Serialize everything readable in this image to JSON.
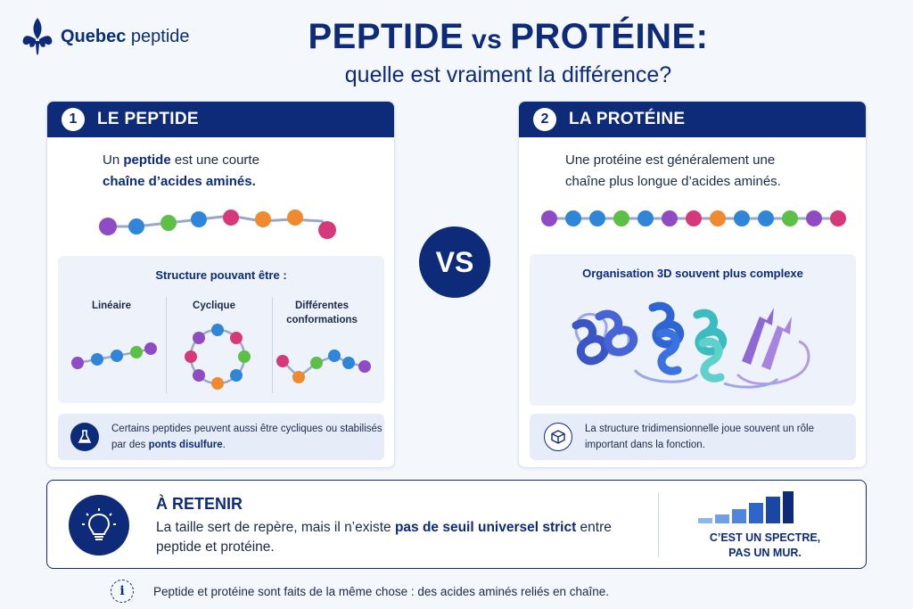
{
  "brand": {
    "name_bold": "Quebec",
    "name_rest": " peptide"
  },
  "header": {
    "title_left": "PEPTIDE",
    "title_vs": " vs ",
    "title_right": "PROTÉINE:",
    "subtitle": "quelle est vraiment la différence?"
  },
  "peptide": {
    "number": "1",
    "title": "LE PEPTIDE",
    "intro_pre": "Un ",
    "intro_bold1": "peptide",
    "intro_mid": " est une courte",
    "intro_bold2": "chaîne d’acides aminés.",
    "structure_title": "Structure pouvant être :",
    "structures": [
      "Linéaire",
      "Cyclique",
      "Différentes conformations"
    ],
    "note_pre": "Certains peptides peuvent aussi être cycliques ou stabilisés par des ",
    "note_bold": "ponts disulfure",
    "note_post": "."
  },
  "protein": {
    "number": "2",
    "title": "LA PROTÉINE",
    "intro_line1": "Une protéine est généralement une",
    "intro_line2": "chaîne plus longue d’acides aminés.",
    "structure_title": "Organisation 3D souvent plus complexe",
    "note": "La structure tridimensionnelle joue souvent un rôle important dans la fonction."
  },
  "vs_label": "VS",
  "retain": {
    "title": "À RETENIR",
    "text_pre": "La taille sert de repère, mais il n’existe ",
    "text_bold": "pas de seuil universel strict",
    "text_post": " entre peptide et protéine.",
    "spectrum_line1": "C’EST UN SPECTRE,",
    "spectrum_line2": "PAS UN MUR."
  },
  "footer": {
    "text": "Peptide et protéine sont faits de la même chose : des acides aminés reliés en chaîne."
  },
  "colors": {
    "navy": "#0d2b78",
    "purple": "#8e4bc4",
    "blue": "#2f86d8",
    "green": "#5cbf46",
    "pink": "#d6397a",
    "orange": "#ef8a2e",
    "teal": "#39b7b5"
  },
  "icons": [
    "fleur-de-lis-icon",
    "flask-icon",
    "cube-icon",
    "lightbulb-icon",
    "info-icon"
  ]
}
